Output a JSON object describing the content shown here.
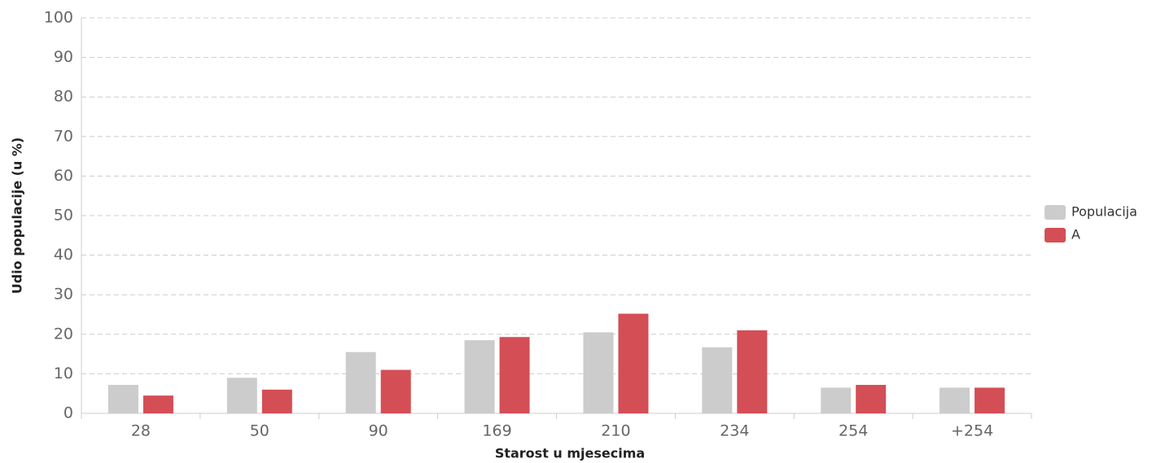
{
  "chart_data": {
    "type": "bar",
    "categories": [
      "28",
      "50",
      "90",
      "169",
      "210",
      "234",
      "254",
      "+254"
    ],
    "series": [
      {
        "name": "Populacija",
        "color": "#cccccc",
        "values": [
          7.2,
          9,
          15.5,
          18.5,
          20.5,
          16.7,
          6.5,
          6.5
        ]
      },
      {
        "name": "A",
        "color": "#d44e55",
        "values": [
          4.5,
          6,
          11,
          19.3,
          25.2,
          21,
          7.2,
          6.5
        ]
      }
    ],
    "x_label": "Starost u mjesecima",
    "y_label": "Udio populacije (u %)",
    "ylim": [
      0,
      100
    ],
    "yticks": [
      0,
      10,
      20,
      30,
      40,
      50,
      60,
      70,
      80,
      90,
      100
    ],
    "grid": true,
    "legend": "right"
  }
}
